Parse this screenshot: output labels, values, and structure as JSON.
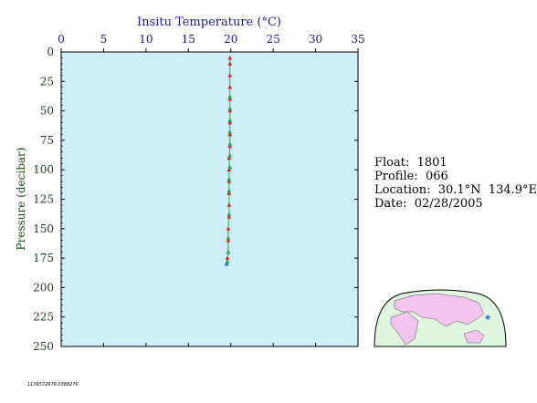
{
  "colors": {
    "plot_bg": "#cdeef6",
    "x_axis_text": "#1a1aa8",
    "y_axis_text": "#1a4a1a",
    "profile_line": "#2fa84f",
    "marker_red": "#e0201c",
    "marker_green": "#22a84a",
    "marker_blue": "#1e6ee0",
    "map_ocean": "#dff7df",
    "map_land": "#f2c4ef"
  },
  "info": {
    "float": "Float:  1801",
    "profile": "Profile:  066",
    "location": "Location:  30.1°N  134.9°E",
    "date": "Date:  02/28/2005"
  },
  "footer": "1139572676.0388276",
  "chart_data": {
    "type": "scatter",
    "title": "",
    "xlabel": "Insitu Temperature (°C)",
    "ylabel": "Pressure (decibar)",
    "xlim": [
      0,
      35
    ],
    "ylim": [
      250,
      0
    ],
    "x_ticks": [
      "0",
      "5",
      "10",
      "15",
      "20",
      "25",
      "30",
      "35"
    ],
    "y_ticks": [
      "0",
      "25",
      "50",
      "75",
      "100",
      "125",
      "150",
      "175",
      "200",
      "225",
      "250"
    ],
    "x_axis_position": "top",
    "grid": false,
    "series": [
      {
        "marker_color": "red",
        "x": [
          19.9,
          19.9,
          19.9,
          19.9,
          19.9,
          19.9,
          19.9,
          19.9,
          19.9,
          19.8,
          19.8,
          19.8,
          19.8,
          19.8,
          19.8,
          19.7,
          19.7,
          19.7,
          19.6,
          19.5
        ],
        "y": [
          5,
          10,
          20,
          30,
          40,
          50,
          60,
          70,
          80,
          90,
          100,
          110,
          120,
          130,
          140,
          150,
          160,
          170,
          175,
          180
        ]
      },
      {
        "marker_color": "green",
        "x": [
          19.9,
          19.9,
          19.9,
          19.9,
          19.9,
          19.9,
          19.9,
          19.8,
          19.8,
          19.8,
          19.7,
          19.7,
          19.6
        ],
        "y": [
          38,
          48,
          58,
          68,
          78,
          88,
          98,
          108,
          118,
          138,
          158,
          170,
          178
        ]
      },
      {
        "marker_color": "blue",
        "x": [
          19.5
        ],
        "y": [
          180
        ]
      }
    ]
  }
}
